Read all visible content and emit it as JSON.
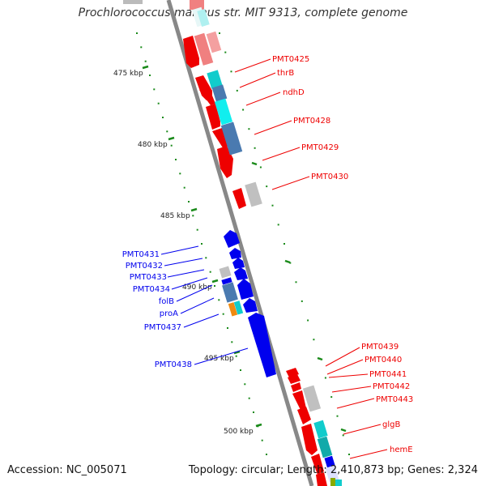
{
  "title": "Prochlorococcus marinus str. MIT 9313, complete genome",
  "footer": {
    "accession": "Accession: NC_005071",
    "topology": "Topology: circular; Length: 2,410,873 bp; Genes: 2,324"
  },
  "colors": {
    "forward_strand": "#ee0000",
    "reverse_strand": "#0000ee",
    "backbone": "#888888",
    "tick": "#1a8a1a",
    "grey_track": "#c0c0c0",
    "cyan_track": "#11cccc",
    "steel_track": "#4a7ab0",
    "pink_track": "#f08080",
    "orange_track": "#f08a10"
  },
  "axis_ticks": [
    "475 kbp",
    "480 kbp",
    "485 kbp",
    "490 kbp",
    "495 kbp",
    "500 kbp"
  ],
  "forward_labels": [
    "PMT0425",
    "thrB",
    "ndhD",
    "PMT0428",
    "PMT0429",
    "PMT0430",
    "PMT0439",
    "PMT0440",
    "PMT0441",
    "PMT0442",
    "PMT0443",
    "glgB",
    "hemE"
  ],
  "reverse_labels": [
    "PMT0431",
    "PMT0432",
    "PMT0433",
    "PMT0434",
    "folB",
    "proA",
    "PMT0437",
    "PMT0438"
  ]
}
